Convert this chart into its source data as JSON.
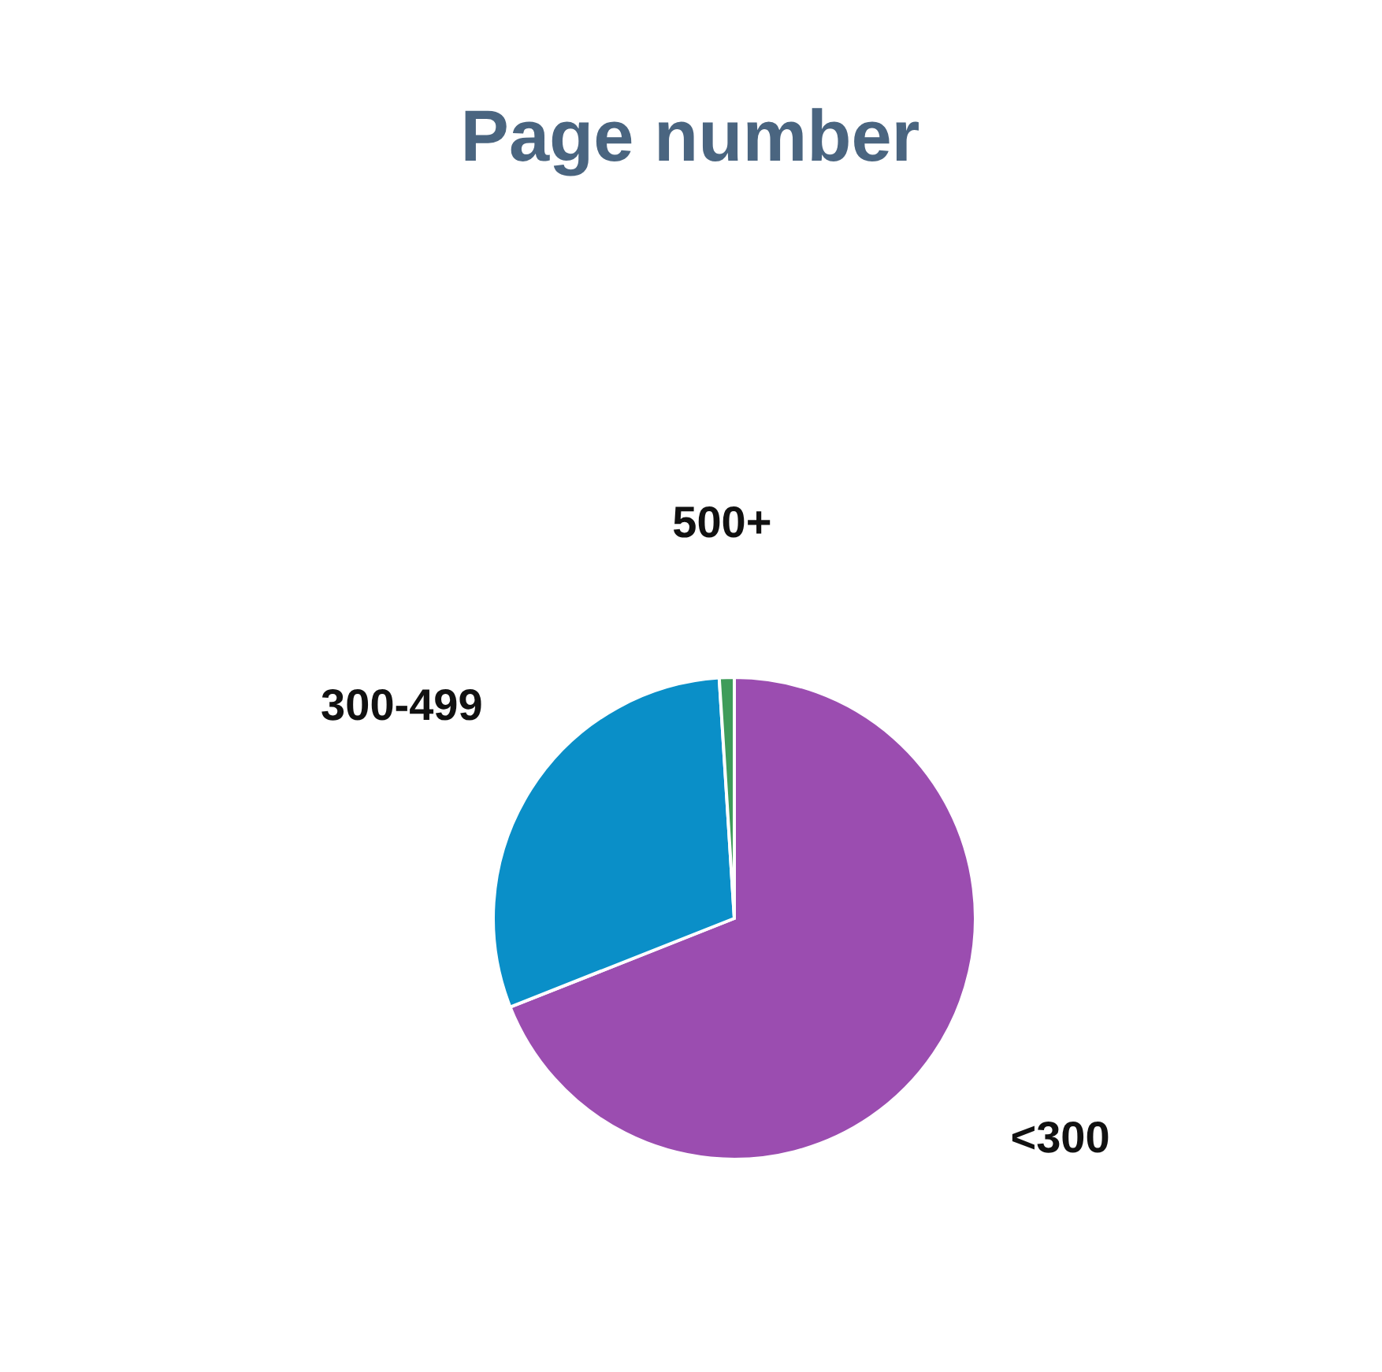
{
  "chart_data": {
    "type": "pie",
    "title": "Page number",
    "categories": [
      "<300",
      "300-499",
      "500+"
    ],
    "values": [
      69,
      30,
      1
    ],
    "colors": [
      "#9b4db0",
      "#0a8fc8",
      "#3f9c5a"
    ]
  }
}
